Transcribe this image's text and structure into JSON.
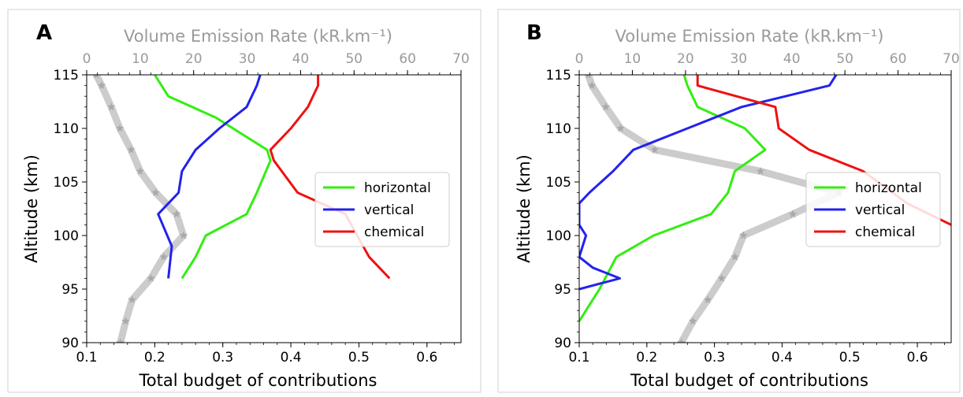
{
  "figure": {
    "panels": [
      {
        "letter": "A"
      },
      {
        "letter": "B"
      }
    ]
  },
  "chart_data": [
    {
      "panel": "A",
      "type": "line",
      "xlabel": "Total budget of contributions",
      "ylabel": "Altitude (km)",
      "xlim": [
        0.1,
        0.65
      ],
      "ylim": [
        90,
        115
      ],
      "xticks": [
        "0.1",
        "0.2",
        "0.3",
        "0.4",
        "0.5",
        "0.6"
      ],
      "yticks": [
        "90",
        "95",
        "100",
        "105",
        "110",
        "115"
      ],
      "top_axis": {
        "label": "Volume Emission Rate (kR.km⁻¹)",
        "lim": [
          0,
          70
        ],
        "ticks": [
          "0",
          "10",
          "20",
          "30",
          "40",
          "50",
          "60",
          "70"
        ],
        "color": "#9a9a9a"
      },
      "legend": {
        "placement": "center-right",
        "entries": [
          "horizontal",
          "vertical",
          "chemical"
        ]
      },
      "series": [
        {
          "name": "horizontal",
          "color": "#33ee11",
          "axis": "bottom",
          "points": [
            [
              0.24,
              96
            ],
            [
              0.26,
              98
            ],
            [
              0.275,
              100
            ],
            [
              0.335,
              102
            ],
            [
              0.35,
              104
            ],
            [
              0.37,
              107
            ],
            [
              0.365,
              108
            ],
            [
              0.34,
              109
            ],
            [
              0.29,
              111
            ],
            [
              0.22,
              113
            ],
            [
              0.2,
              115
            ]
          ]
        },
        {
          "name": "vertical",
          "color": "#2222ee",
          "axis": "bottom",
          "points": [
            [
              0.22,
              96
            ],
            [
              0.225,
              99
            ],
            [
              0.205,
              102
            ],
            [
              0.235,
              104
            ],
            [
              0.24,
              106
            ],
            [
              0.26,
              108
            ],
            [
              0.295,
              110
            ],
            [
              0.335,
              112
            ],
            [
              0.35,
              114
            ],
            [
              0.355,
              115
            ]
          ]
        },
        {
          "name": "chemical",
          "color": "#ee1111",
          "axis": "bottom",
          "points": [
            [
              0.545,
              96
            ],
            [
              0.515,
              98
            ],
            [
              0.48,
              102
            ],
            [
              0.41,
              104
            ],
            [
              0.375,
              107
            ],
            [
              0.37,
              108
            ],
            [
              0.4,
              110
            ],
            [
              0.425,
              112
            ],
            [
              0.44,
              114
            ],
            [
              0.44,
              115
            ]
          ]
        },
        {
          "name": "",
          "color": "#cccccc",
          "axis": "top",
          "marker": "star",
          "points": [
            [
              6.3,
              90
            ],
            [
              7.3,
              92
            ],
            [
              8.5,
              94
            ],
            [
              12.0,
              96
            ],
            [
              14.4,
              98
            ],
            [
              18.1,
              100
            ],
            [
              16.8,
              102
            ],
            [
              12.9,
              104
            ],
            [
              10.0,
              106
            ],
            [
              8.3,
              108
            ],
            [
              6.2,
              110
            ],
            [
              4.6,
              112
            ],
            [
              2.8,
              114
            ],
            [
              1.8,
              115
            ]
          ]
        }
      ]
    },
    {
      "panel": "B",
      "type": "line",
      "xlabel": "Total budget of contributions",
      "ylabel": "Altitude (km)",
      "xlim": [
        0.1,
        0.65
      ],
      "ylim": [
        90,
        115
      ],
      "xticks": [
        "0.1",
        "0.2",
        "0.3",
        "0.4",
        "0.5",
        "0.6"
      ],
      "yticks": [
        "90",
        "95",
        "100",
        "105",
        "110",
        "115"
      ],
      "top_axis": {
        "label": "Volume Emission Rate (kR.km⁻¹)",
        "lim": [
          0,
          70
        ],
        "ticks": [
          "0",
          "10",
          "20",
          "30",
          "40",
          "50",
          "60",
          "70"
        ],
        "color": "#9a9a9a"
      },
      "legend": {
        "placement": "center-right",
        "entries": [
          "horizontal",
          "vertical",
          "chemical"
        ]
      },
      "series": [
        {
          "name": "horizontal",
          "color": "#33ee11",
          "axis": "bottom",
          "points": [
            [
              0.1,
              92
            ],
            [
              0.13,
              95
            ],
            [
              0.155,
              98
            ],
            [
              0.21,
              100
            ],
            [
              0.295,
              102
            ],
            [
              0.32,
              104
            ],
            [
              0.33,
              106
            ],
            [
              0.375,
              108
            ],
            [
              0.345,
              110
            ],
            [
              0.275,
              112
            ],
            [
              0.26,
              114
            ],
            [
              0.255,
              115
            ]
          ]
        },
        {
          "name": "vertical",
          "color": "#2222ee",
          "axis": "bottom",
          "points": [
            [
              0.1,
              95
            ],
            [
              0.16,
              96
            ],
            [
              0.12,
              97
            ],
            [
              0.1,
              98
            ],
            [
              0.11,
              100
            ],
            [
              0.1,
              101
            ],
            [
              0.1,
              103
            ],
            [
              0.115,
              104
            ],
            [
              0.15,
              106
            ],
            [
              0.18,
              108
            ],
            [
              0.26,
              110
            ],
            [
              0.34,
              112
            ],
            [
              0.47,
              114
            ],
            [
              0.48,
              115
            ]
          ]
        },
        {
          "name": "chemical",
          "color": "#ee1111",
          "axis": "bottom",
          "points": [
            [
              0.65,
              101
            ],
            [
              0.585,
              103
            ],
            [
              0.52,
              106
            ],
            [
              0.44,
              108
            ],
            [
              0.395,
              110
            ],
            [
              0.39,
              112
            ],
            [
              0.275,
              114
            ],
            [
              0.275,
              115
            ]
          ]
        },
        {
          "name": "",
          "color": "#cccccc",
          "axis": "top",
          "marker": "star",
          "points": [
            [
              19.2,
              90
            ],
            [
              21.4,
              92
            ],
            [
              24.2,
              94
            ],
            [
              26.8,
              96
            ],
            [
              29.3,
              98
            ],
            [
              30.9,
              100
            ],
            [
              40.2,
              102
            ],
            [
              48.8,
              104
            ],
            [
              34.1,
              106
            ],
            [
              14.2,
              108
            ],
            [
              7.8,
              110
            ],
            [
              5.0,
              112
            ],
            [
              2.4,
              114
            ],
            [
              1.7,
              115
            ]
          ]
        }
      ]
    }
  ]
}
